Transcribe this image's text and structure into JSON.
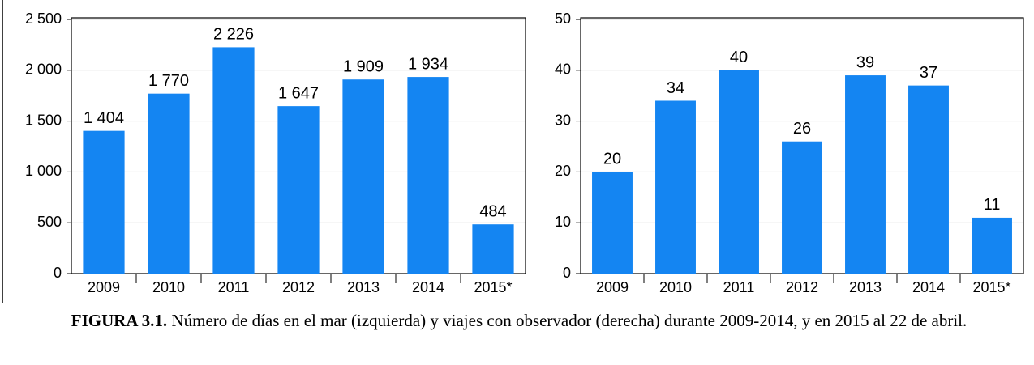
{
  "chart_data": [
    {
      "type": "bar",
      "categories": [
        "2009",
        "2010",
        "2011",
        "2012",
        "2013",
        "2014",
        "2015*"
      ],
      "values": [
        1404,
        1770,
        2226,
        1647,
        1909,
        1934,
        484
      ],
      "value_labels": [
        "1 404",
        "1 770",
        "2 226",
        "1 647",
        "1 909",
        "1 934",
        "484"
      ],
      "color": "#1485f2",
      "ylim": [
        0,
        2500
      ],
      "yticks": [
        0,
        500,
        {
          "value": 1000,
          "label": "1 000"
        },
        {
          "value": 1500,
          "label": "1 500"
        },
        {
          "value": 2000,
          "label": "2 000"
        },
        {
          "value": 2500,
          "label": "2 500"
        }
      ],
      "grid": true
    },
    {
      "type": "bar",
      "categories": [
        "2009",
        "2010",
        "2011",
        "2012",
        "2013",
        "2014",
        "2015*"
      ],
      "values": [
        20,
        34,
        40,
        26,
        39,
        37,
        11
      ],
      "color": "#1485f2",
      "ylim": [
        0,
        50
      ],
      "yticks": [
        0,
        10,
        20,
        30,
        40,
        50
      ],
      "grid": true
    }
  ],
  "caption": {
    "label": "FIGURA 3.1.",
    "text": "Número de días en el mar (izquierda) y viajes con observador (derecha) durante 2009-2014, y en 2015 al 22 de abril."
  }
}
